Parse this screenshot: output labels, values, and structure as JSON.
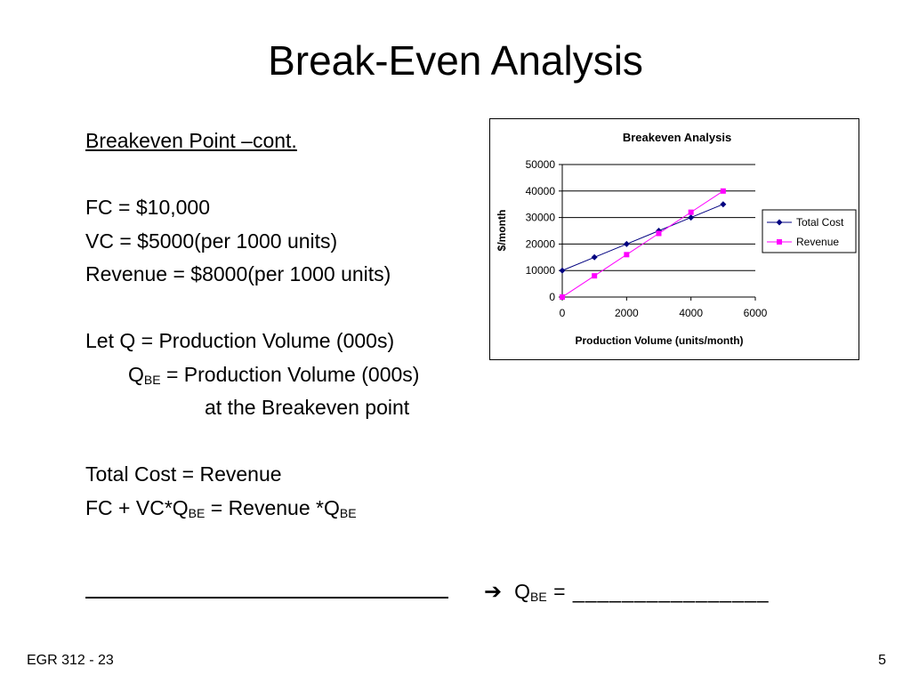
{
  "slide": {
    "title": "Break-Even Analysis",
    "subheading": "Breakeven Point –cont.",
    "fc_line": "FC = $10,000",
    "vc_line": "VC = $5000(per 1000 units)",
    "revenue_line": "Revenue = $8000(per 1000 units)",
    "let_q_line": "Let Q = Production Volume (000s)",
    "qbe_q": "Q",
    "qbe_sub": "BE",
    "qbe_def": " = Production Volume  (000s)",
    "qbe_def2": "at the Breakeven point",
    "eq1": "Total Cost = Revenue",
    "eq2_a": "FC + VC*Q",
    "eq2_sub1": "BE",
    "eq2_b": " = Revenue *Q",
    "eq2_sub2": "BE",
    "answer_q": "Q",
    "answer_sub": "BE",
    "answer_tail": " = ________________",
    "arrow_icon": "➔",
    "footer_left": "EGR 312 - 23",
    "footer_right": "5"
  },
  "chart_data": {
    "type": "line",
    "title": "Breakeven Analysis",
    "xlabel": "Production Volume (units/month)",
    "ylabel": "$/month",
    "xlim": [
      0,
      6000
    ],
    "ylim": [
      0,
      50000
    ],
    "xticks": [
      0,
      2000,
      4000,
      6000
    ],
    "yticks": [
      0,
      10000,
      20000,
      30000,
      40000,
      50000
    ],
    "grid": "horizontal",
    "legend_position": "right",
    "series": [
      {
        "name": "Total Cost",
        "color": "#000080",
        "marker": "diamond",
        "x": [
          0,
          1000,
          2000,
          3000,
          4000,
          5000
        ],
        "y": [
          10000,
          15000,
          20000,
          25000,
          30000,
          35000
        ]
      },
      {
        "name": "Revenue",
        "color": "#ff00ff",
        "marker": "square",
        "x": [
          0,
          1000,
          2000,
          3000,
          4000,
          5000
        ],
        "y": [
          0,
          8000,
          16000,
          24000,
          32000,
          40000
        ]
      }
    ]
  }
}
